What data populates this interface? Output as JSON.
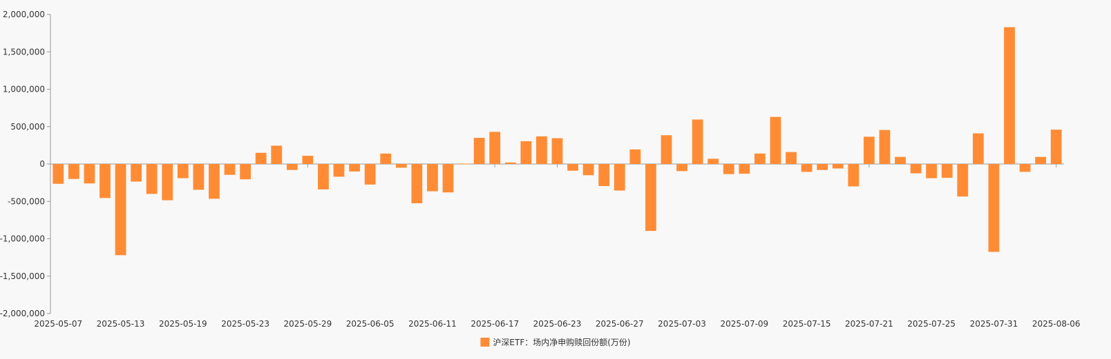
{
  "chart_data": {
    "type": "bar",
    "title": "",
    "xlabel": "",
    "ylabel": "",
    "ylim": [
      -2000000,
      2000000
    ],
    "y_ticks": [
      2000000,
      1500000,
      1000000,
      500000,
      0,
      -500000,
      -1000000,
      -1500000,
      -2000000
    ],
    "y_tick_labels": [
      "2,000,000",
      "1,500,000",
      "1,000,000",
      "500,000",
      "0",
      "-500,000",
      "-1,000,000",
      "-1,500,000",
      "-2,000,000"
    ],
    "x_tick_labels": [
      "2025-05-07",
      "2025-05-13",
      "2025-05-19",
      "2025-05-23",
      "2025-05-29",
      "2025-06-05",
      "2025-06-11",
      "2025-06-17",
      "2025-06-23",
      "2025-06-27",
      "2025-07-03",
      "2025-07-09",
      "2025-07-15",
      "2025-07-21",
      "2025-07-25",
      "2025-07-31",
      "2025-08-06"
    ],
    "legend_position": "bottom-center",
    "grid": false,
    "bar_color": "#ff8c35",
    "categories": [
      "2025-05-07",
      "2025-05-08",
      "2025-05-09",
      "2025-05-12",
      "2025-05-13",
      "2025-05-14",
      "2025-05-15",
      "2025-05-16",
      "2025-05-19",
      "2025-05-20",
      "2025-05-21",
      "2025-05-22",
      "2025-05-23",
      "2025-05-26",
      "2025-05-27",
      "2025-05-28",
      "2025-05-29",
      "2025-05-30",
      "2025-06-03",
      "2025-06-04",
      "2025-06-05",
      "2025-06-06",
      "2025-06-09",
      "2025-06-10",
      "2025-06-11",
      "2025-06-12",
      "2025-06-13",
      "2025-06-16",
      "2025-06-17",
      "2025-06-18",
      "2025-06-19",
      "2025-06-20",
      "2025-06-23",
      "2025-06-24",
      "2025-06-25",
      "2025-06-26",
      "2025-06-27",
      "2025-06-30",
      "2025-07-01",
      "2025-07-02",
      "2025-07-03",
      "2025-07-04",
      "2025-07-07",
      "2025-07-08",
      "2025-07-09",
      "2025-07-10",
      "2025-07-11",
      "2025-07-14",
      "2025-07-15",
      "2025-07-16",
      "2025-07-17",
      "2025-07-18",
      "2025-07-21",
      "2025-07-22",
      "2025-07-23",
      "2025-07-24",
      "2025-07-25",
      "2025-07-28",
      "2025-07-29",
      "2025-07-30",
      "2025-07-31",
      "2025-08-01",
      "2025-08-04",
      "2025-08-05",
      "2025-08-06"
    ],
    "series": [
      {
        "name": "沪深ETF：场内净申购赎回份额(万份)",
        "values": [
          -265000,
          -200000,
          -260000,
          -455000,
          -1220000,
          -235000,
          -400000,
          -485000,
          -190000,
          -345000,
          -465000,
          -145000,
          -205000,
          150000,
          245000,
          -80000,
          110000,
          -340000,
          -170000,
          -100000,
          -275000,
          140000,
          -50000,
          -525000,
          -365000,
          -380000,
          5000,
          350000,
          430000,
          20000,
          305000,
          370000,
          345000,
          -90000,
          -150000,
          -295000,
          -355000,
          195000,
          -895000,
          385000,
          -95000,
          595000,
          70000,
          -135000,
          -130000,
          140000,
          630000,
          160000,
          -105000,
          -80000,
          -60000,
          -300000,
          365000,
          455000,
          95000,
          -125000,
          -190000,
          -185000,
          -435000,
          410000,
          -1175000,
          1830000,
          -105000,
          95000,
          460000
        ]
      }
    ]
  }
}
